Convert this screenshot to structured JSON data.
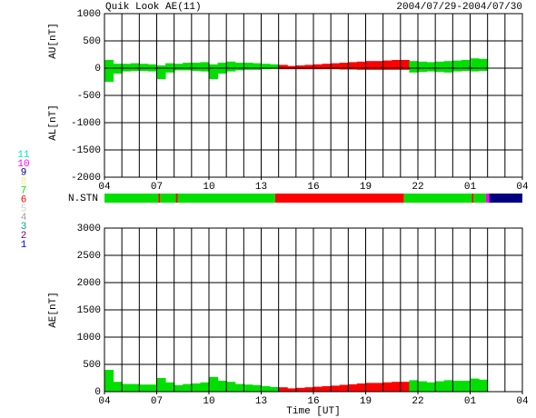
{
  "chart_data": [
    {
      "type": "band",
      "title": "Quik Look AE(11)",
      "subtitle": "2004/07/29-2004/07/30",
      "y_labels": [
        "AU[nT]",
        "AL[nT]"
      ],
      "x": [
        0,
        0.5,
        1,
        1.5,
        2,
        2.5,
        3,
        3.5,
        4,
        4.5,
        5,
        5.5,
        6,
        6.5,
        7,
        7.5,
        8,
        8.5,
        9,
        9.5,
        10,
        10.5,
        11,
        11.5,
        12,
        12.5,
        13,
        13.5,
        14,
        14.5,
        15,
        15.5,
        16,
        16.5,
        17,
        17.5,
        18,
        18.5,
        19,
        19.5,
        20,
        20.5,
        21,
        21.5
      ],
      "xlim": [
        0,
        24
      ],
      "xticks": [
        {
          "value": 0,
          "label": "04"
        },
        {
          "value": 3,
          "label": "07"
        },
        {
          "value": 6,
          "label": "10"
        },
        {
          "value": 9,
          "label": "13"
        },
        {
          "value": 12,
          "label": "16"
        },
        {
          "value": 15,
          "label": "19"
        },
        {
          "value": 18,
          "label": "22"
        },
        {
          "value": 21,
          "label": "01"
        },
        {
          "value": 24,
          "label": "04"
        }
      ],
      "x_minor_step": 1,
      "ylim": [
        -2000,
        1000
      ],
      "yticks": [
        -2000,
        -1500,
        -1000,
        -500,
        0,
        500,
        1000
      ],
      "grid": true,
      "series": [
        {
          "values": [
            150,
            80,
            80,
            90,
            80,
            70,
            50,
            90,
            80,
            100,
            100,
            110,
            70,
            100,
            120,
            100,
            100,
            90,
            80,
            70,
            60,
            40,
            50,
            60,
            70,
            80,
            90,
            100,
            110,
            120,
            130,
            130,
            140,
            150,
            150,
            130,
            120,
            110,
            120,
            130,
            140,
            150,
            180,
            170
          ]
        },
        {
          "values": [
            -250,
            -100,
            -60,
            -50,
            -50,
            -60,
            -200,
            -80,
            -40,
            -40,
            -50,
            -60,
            -200,
            -100,
            -60,
            -40,
            -30,
            -30,
            -20,
            -15,
            -20,
            -20,
            -20,
            -20,
            -20,
            -20,
            -20,
            -25,
            -25,
            -30,
            -30,
            -30,
            -30,
            -30,
            -30,
            -80,
            -70,
            -60,
            -70,
            -80,
            -60,
            -50,
            -60,
            -50
          ]
        }
      ]
    },
    {
      "type": "strip",
      "label": "N.STN",
      "start": [
        0,
        3.1,
        3.2,
        4.1,
        4.2,
        9.8,
        17.2,
        21.1,
        21.2,
        21.9,
        22.1
      ],
      "end": [
        3.1,
        3.2,
        4.1,
        4.2,
        9.8,
        17.2,
        21.1,
        21.2,
        21.9,
        22.1,
        24
      ],
      "stations": [
        7,
        6,
        7,
        6,
        7,
        6,
        7,
        6,
        7,
        10,
        9
      ],
      "legend": [
        {
          "label": 11,
          "color": "#00e0e0"
        },
        {
          "label": 10,
          "color": "#ff00ff"
        },
        {
          "label": 9,
          "color": "#000080"
        },
        {
          "label": 8,
          "color": "#f0f080"
        },
        {
          "label": 7,
          "color": "#00e000"
        },
        {
          "label": 6,
          "color": "#ff0000"
        },
        {
          "label": 5,
          "color": "#d0d0d0"
        },
        {
          "label": 4,
          "color": "#a0a0a0"
        },
        {
          "label": 3,
          "color": "#00a0a0"
        },
        {
          "label": 2,
          "color": "#800080"
        },
        {
          "label": 1,
          "color": "#0000ff"
        }
      ]
    },
    {
      "type": "area",
      "y_label": "AE[nT]",
      "x_label": "Time [UT]",
      "x": [
        0,
        0.5,
        1,
        1.5,
        2,
        2.5,
        3,
        3.5,
        4,
        4.5,
        5,
        5.5,
        6,
        6.5,
        7,
        7.5,
        8,
        8.5,
        9,
        9.5,
        10,
        10.5,
        11,
        11.5,
        12,
        12.5,
        13,
        13.5,
        14,
        14.5,
        15,
        15.5,
        16,
        16.5,
        17,
        17.5,
        18,
        18.5,
        19,
        19.5,
        20,
        20.5,
        21,
        21.5
      ],
      "xlim": [
        0,
        24
      ],
      "xticks": [
        {
          "value": 0,
          "label": "04"
        },
        {
          "value": 3,
          "label": "07"
        },
        {
          "value": 6,
          "label": "10"
        },
        {
          "value": 9,
          "label": "13"
        },
        {
          "value": 12,
          "label": "16"
        },
        {
          "value": 15,
          "label": "19"
        },
        {
          "value": 18,
          "label": "22"
        },
        {
          "value": 21,
          "label": "01"
        },
        {
          "value": 24,
          "label": "04"
        }
      ],
      "x_minor_step": 1,
      "ylim": [
        0,
        3000
      ],
      "yticks": [
        0,
        500,
        1000,
        1500,
        2000,
        2500,
        3000
      ],
      "grid": true,
      "series": [
        {
          "values": [
            400,
            180,
            140,
            140,
            130,
            130,
            250,
            170,
            120,
            140,
            150,
            170,
            270,
            200,
            180,
            140,
            130,
            120,
            100,
            85,
            80,
            60,
            70,
            80,
            90,
            100,
            110,
            125,
            135,
            150,
            160,
            160,
            170,
            180,
            180,
            210,
            190,
            170,
            190,
            210,
            200,
            200,
            240,
            220
          ]
        }
      ]
    }
  ]
}
